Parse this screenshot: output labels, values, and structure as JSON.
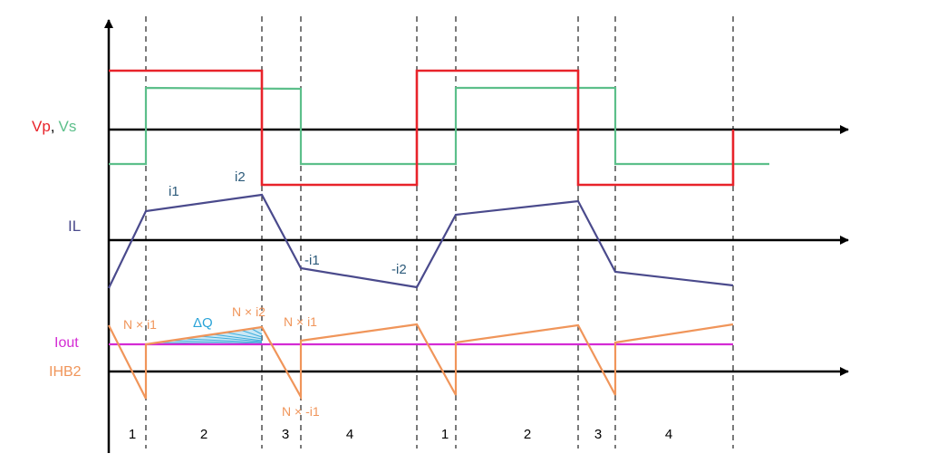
{
  "signal_labels": {
    "vp": "Vp",
    "comma": ",",
    "vs": "Vs",
    "il": "IL",
    "iout": "Iout",
    "ihb2": "IHB2"
  },
  "annotations": {
    "i1": "i1",
    "i2": "i2",
    "neg_i1": "-i1",
    "neg_i2": "-i2",
    "n_i1": "N × i1",
    "delta_q": "ΔQ",
    "n_i2": "N × i2",
    "n_i1_b": "N × i1",
    "n_neg_i1": "N × -i1"
  },
  "intervals": [
    "1",
    "2",
    "3",
    "4",
    "1",
    "2",
    "3",
    "4"
  ],
  "colors": {
    "vp": "#e8232a",
    "vs": "#5cbf8a",
    "il": "#4a4a8c",
    "iout": "#d42bd4",
    "ihb2": "#f0955a",
    "delta_q": "#29a3d8",
    "axis": "#000000",
    "divider": "#333333"
  }
}
